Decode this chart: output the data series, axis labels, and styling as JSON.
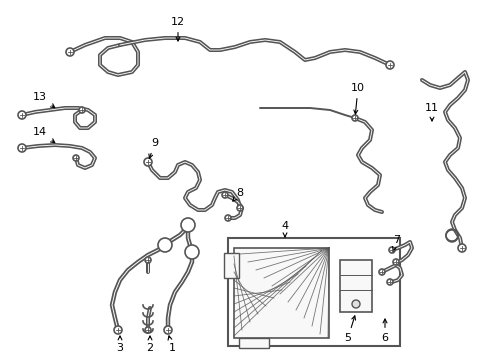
{
  "bg_color": "#ffffff",
  "lc": "#555555",
  "lw": 1.4,
  "fs": 8.0,
  "figw": 4.89,
  "figh": 3.6,
  "dpi": 100
}
